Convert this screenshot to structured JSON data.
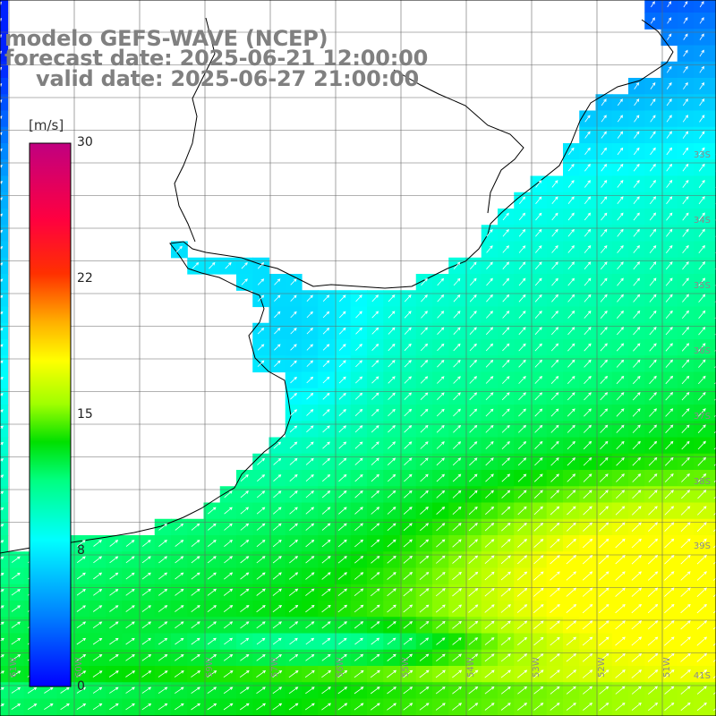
{
  "title": {
    "model": "modelo GEFS-WAVE (NCEP)",
    "forecast": "forecast date: 2025-06-21 12:00:00",
    "valid": "valid date: 2025-06-27 21:00:00"
  },
  "colorbar": {
    "unit": "[m/s]",
    "ticks": [
      "30",
      "22",
      "15",
      "8",
      "0"
    ],
    "stops": [
      "#0000ff",
      "#00a0ff",
      "#00ffff",
      "#00ff80",
      "#00e000",
      "#80ff00",
      "#ffff00",
      "#ffa000",
      "#ff0000",
      "#ff0060",
      "#c00080"
    ]
  },
  "grid": {
    "lat_labels": [
      "33S",
      "34S",
      "35S",
      "36S",
      "37S",
      "38S",
      "39S",
      "41S"
    ],
    "lon_labels": [
      "61W",
      "60W",
      "59W",
      "57W",
      "56W",
      "55W",
      "54W",
      "53W",
      "52W",
      "51W"
    ]
  },
  "field": {
    "variable": "wind speed",
    "arrow_color": "#ffffff",
    "land_color": "#ffffff",
    "coast_color": "#000000"
  }
}
